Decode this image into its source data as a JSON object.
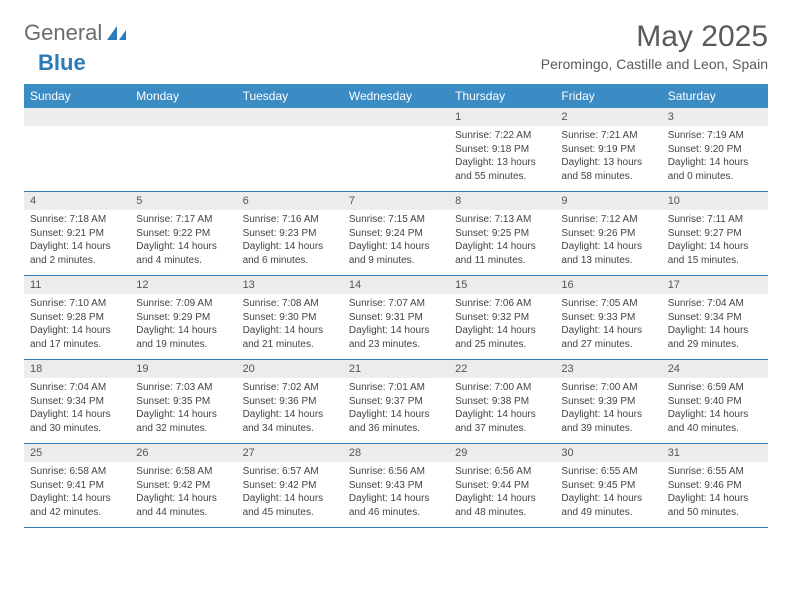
{
  "logo": {
    "text1": "General",
    "text2": "Blue"
  },
  "title": "May 2025",
  "location": "Peromingo, Castille and Leon, Spain",
  "colors": {
    "header_bg": "#3b8bc4",
    "header_text": "#ffffff",
    "daynum_bg": "#ececec",
    "border": "#2b7bb9",
    "body_text": "#444444",
    "title_text": "#5a5a5a"
  },
  "day_headers": [
    "Sunday",
    "Monday",
    "Tuesday",
    "Wednesday",
    "Thursday",
    "Friday",
    "Saturday"
  ],
  "labels": {
    "sunrise": "Sunrise:",
    "sunset": "Sunset:",
    "daylight": "Daylight:"
  },
  "weeks": [
    [
      null,
      null,
      null,
      null,
      {
        "n": "1",
        "sunrise": "7:22 AM",
        "sunset": "9:18 PM",
        "daylight": "13 hours and 55 minutes."
      },
      {
        "n": "2",
        "sunrise": "7:21 AM",
        "sunset": "9:19 PM",
        "daylight": "13 hours and 58 minutes."
      },
      {
        "n": "3",
        "sunrise": "7:19 AM",
        "sunset": "9:20 PM",
        "daylight": "14 hours and 0 minutes."
      }
    ],
    [
      {
        "n": "4",
        "sunrise": "7:18 AM",
        "sunset": "9:21 PM",
        "daylight": "14 hours and 2 minutes."
      },
      {
        "n": "5",
        "sunrise": "7:17 AM",
        "sunset": "9:22 PM",
        "daylight": "14 hours and 4 minutes."
      },
      {
        "n": "6",
        "sunrise": "7:16 AM",
        "sunset": "9:23 PM",
        "daylight": "14 hours and 6 minutes."
      },
      {
        "n": "7",
        "sunrise": "7:15 AM",
        "sunset": "9:24 PM",
        "daylight": "14 hours and 9 minutes."
      },
      {
        "n": "8",
        "sunrise": "7:13 AM",
        "sunset": "9:25 PM",
        "daylight": "14 hours and 11 minutes."
      },
      {
        "n": "9",
        "sunrise": "7:12 AM",
        "sunset": "9:26 PM",
        "daylight": "14 hours and 13 minutes."
      },
      {
        "n": "10",
        "sunrise": "7:11 AM",
        "sunset": "9:27 PM",
        "daylight": "14 hours and 15 minutes."
      }
    ],
    [
      {
        "n": "11",
        "sunrise": "7:10 AM",
        "sunset": "9:28 PM",
        "daylight": "14 hours and 17 minutes."
      },
      {
        "n": "12",
        "sunrise": "7:09 AM",
        "sunset": "9:29 PM",
        "daylight": "14 hours and 19 minutes."
      },
      {
        "n": "13",
        "sunrise": "7:08 AM",
        "sunset": "9:30 PM",
        "daylight": "14 hours and 21 minutes."
      },
      {
        "n": "14",
        "sunrise": "7:07 AM",
        "sunset": "9:31 PM",
        "daylight": "14 hours and 23 minutes."
      },
      {
        "n": "15",
        "sunrise": "7:06 AM",
        "sunset": "9:32 PM",
        "daylight": "14 hours and 25 minutes."
      },
      {
        "n": "16",
        "sunrise": "7:05 AM",
        "sunset": "9:33 PM",
        "daylight": "14 hours and 27 minutes."
      },
      {
        "n": "17",
        "sunrise": "7:04 AM",
        "sunset": "9:34 PM",
        "daylight": "14 hours and 29 minutes."
      }
    ],
    [
      {
        "n": "18",
        "sunrise": "7:04 AM",
        "sunset": "9:34 PM",
        "daylight": "14 hours and 30 minutes."
      },
      {
        "n": "19",
        "sunrise": "7:03 AM",
        "sunset": "9:35 PM",
        "daylight": "14 hours and 32 minutes."
      },
      {
        "n": "20",
        "sunrise": "7:02 AM",
        "sunset": "9:36 PM",
        "daylight": "14 hours and 34 minutes."
      },
      {
        "n": "21",
        "sunrise": "7:01 AM",
        "sunset": "9:37 PM",
        "daylight": "14 hours and 36 minutes."
      },
      {
        "n": "22",
        "sunrise": "7:00 AM",
        "sunset": "9:38 PM",
        "daylight": "14 hours and 37 minutes."
      },
      {
        "n": "23",
        "sunrise": "7:00 AM",
        "sunset": "9:39 PM",
        "daylight": "14 hours and 39 minutes."
      },
      {
        "n": "24",
        "sunrise": "6:59 AM",
        "sunset": "9:40 PM",
        "daylight": "14 hours and 40 minutes."
      }
    ],
    [
      {
        "n": "25",
        "sunrise": "6:58 AM",
        "sunset": "9:41 PM",
        "daylight": "14 hours and 42 minutes."
      },
      {
        "n": "26",
        "sunrise": "6:58 AM",
        "sunset": "9:42 PM",
        "daylight": "14 hours and 44 minutes."
      },
      {
        "n": "27",
        "sunrise": "6:57 AM",
        "sunset": "9:42 PM",
        "daylight": "14 hours and 45 minutes."
      },
      {
        "n": "28",
        "sunrise": "6:56 AM",
        "sunset": "9:43 PM",
        "daylight": "14 hours and 46 minutes."
      },
      {
        "n": "29",
        "sunrise": "6:56 AM",
        "sunset": "9:44 PM",
        "daylight": "14 hours and 48 minutes."
      },
      {
        "n": "30",
        "sunrise": "6:55 AM",
        "sunset": "9:45 PM",
        "daylight": "14 hours and 49 minutes."
      },
      {
        "n": "31",
        "sunrise": "6:55 AM",
        "sunset": "9:46 PM",
        "daylight": "14 hours and 50 minutes."
      }
    ]
  ]
}
